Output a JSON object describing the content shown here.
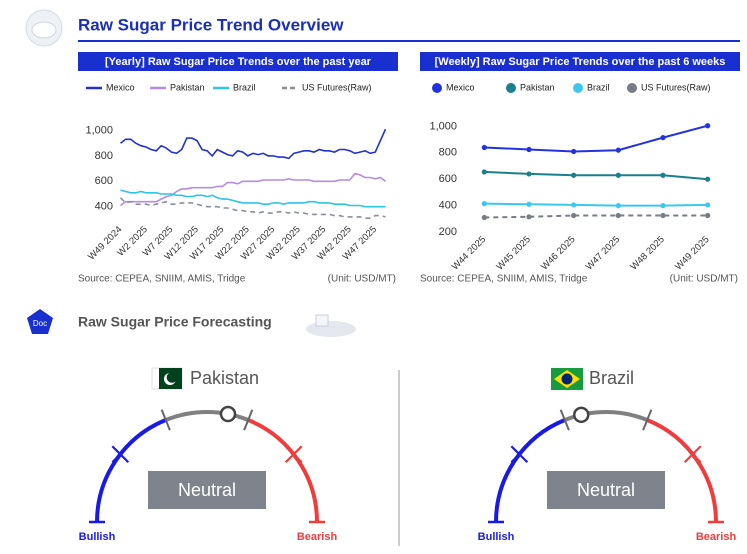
{
  "header": {
    "title": "Raw Sugar Price Trend Overview"
  },
  "chart_data": [
    {
      "type": "line",
      "title": "[Yearly] Raw Sugar Price Trends over the past year",
      "categories": [
        "W49 2024",
        null,
        null,
        null,
        null,
        "W2 2025",
        null,
        null,
        null,
        null,
        "W7 2025",
        null,
        null,
        null,
        null,
        "W12 2025",
        null,
        null,
        null,
        null,
        "W17 2025",
        null,
        null,
        null,
        null,
        "W22 2025",
        null,
        null,
        null,
        null,
        "W27 2025",
        null,
        null,
        null,
        null,
        "W32 2025",
        null,
        null,
        null,
        null,
        "W37 2025",
        null,
        null,
        null,
        null,
        "W42 2025",
        null,
        null,
        null,
        null,
        "W47 2025",
        null,
        null
      ],
      "series": [
        {
          "name": "Mexico",
          "color": "#2233cc",
          "style": "solid",
          "values": [
            900,
            930,
            930,
            900,
            880,
            870,
            850,
            840,
            880,
            860,
            830,
            820,
            850,
            940,
            940,
            920,
            850,
            840,
            800,
            850,
            830,
            810,
            800,
            840,
            830,
            800,
            820,
            810,
            820,
            800,
            800,
            790,
            790,
            780,
            820,
            830,
            840,
            840,
            830,
            850,
            840,
            840,
            830,
            850,
            850,
            840,
            820,
            830,
            840,
            820,
            830,
            920,
            1010
          ]
        },
        {
          "name": "Pakistan",
          "color": "#b48ce2",
          "style": "solid",
          "values": [
            410,
            440,
            440,
            440,
            440,
            440,
            440,
            440,
            460,
            480,
            490,
            520,
            540,
            540,
            550,
            550,
            550,
            550,
            550,
            560,
            560,
            590,
            590,
            580,
            600,
            600,
            600,
            600,
            610,
            610,
            610,
            610,
            610,
            620,
            610,
            610,
            610,
            610,
            600,
            600,
            600,
            600,
            600,
            610,
            610,
            610,
            660,
            650,
            630,
            630,
            620,
            630,
            600
          ]
        },
        {
          "name": "Brazil",
          "color": "#2ec4e6",
          "style": "solid",
          "values": [
            530,
            520,
            510,
            510,
            520,
            510,
            510,
            510,
            500,
            500,
            500,
            490,
            490,
            480,
            480,
            490,
            490,
            480,
            490,
            470,
            460,
            460,
            450,
            440,
            430,
            430,
            430,
            430,
            420,
            420,
            430,
            430,
            420,
            430,
            430,
            430,
            430,
            440,
            440,
            430,
            430,
            430,
            420,
            420,
            420,
            410,
            410,
            410,
            400,
            400,
            400,
            400,
            400
          ]
        },
        {
          "name": "US Futures(Raw)",
          "color": "#8a8f99",
          "style": "dashed",
          "values": [
            470,
            430,
            440,
            420,
            420,
            420,
            410,
            420,
            430,
            440,
            420,
            420,
            430,
            430,
            430,
            420,
            410,
            400,
            400,
            400,
            390,
            390,
            380,
            370,
            370,
            360,
            360,
            350,
            360,
            350,
            350,
            360,
            360,
            350,
            360,
            350,
            350,
            340,
            340,
            340,
            340,
            340,
            330,
            330,
            320,
            320,
            320,
            320,
            310,
            310,
            330,
            330,
            320
          ]
        }
      ],
      "ylim": [
        280,
        1200
      ],
      "yticks": [
        400,
        600,
        800,
        {
          "value": 1000,
          "label": "1,000"
        }
      ],
      "markers": false,
      "source": "Source: CEPEA, SNIIM, AMIS, Tridge",
      "unit": "(Unit: USD/MT)"
    },
    {
      "type": "line",
      "title": "[Weekly] Raw Sugar Price Trends over the past 6 weeks",
      "categories": [
        "W44 2025",
        "W45 2025",
        "W46 2025",
        "W47 2025",
        "W48 2025",
        "W49 2025"
      ],
      "series": [
        {
          "name": "Mexico",
          "color": "#2233dd",
          "style": "solid",
          "values": [
            840,
            825,
            810,
            820,
            915,
            1005
          ]
        },
        {
          "name": "Pakistan",
          "color": "#1a7f8e",
          "style": "solid",
          "values": [
            655,
            640,
            630,
            630,
            630,
            600
          ]
        },
        {
          "name": "Brazil",
          "color": "#3cc8ee",
          "style": "solid",
          "values": [
            415,
            410,
            405,
            400,
            400,
            405
          ]
        },
        {
          "name": "US Futures(Raw)",
          "color": "#777c86",
          "style": "dashed",
          "values": [
            310,
            315,
            325,
            325,
            325,
            325
          ]
        }
      ],
      "ylim": [
        200,
        1200
      ],
      "yticks": [
        200,
        400,
        600,
        800,
        {
          "value": 1000,
          "label": "1,000"
        }
      ],
      "markers": true,
      "source": "Source: CEPEA, SNIIM, AMIS, Tridge",
      "unit": "(Unit: USD/MT)"
    }
  ],
  "forecast": {
    "title": "Raw Sugar Price Forecasting",
    "icon": "Doc",
    "gauges": [
      {
        "country": "Pakistan",
        "outlook": "Neutral",
        "left": "Bullish",
        "right": "Bearish"
      },
      {
        "country": "Brazil",
        "outlook": "Neutral",
        "left": "Bullish",
        "right": "Bearish"
      }
    ]
  }
}
